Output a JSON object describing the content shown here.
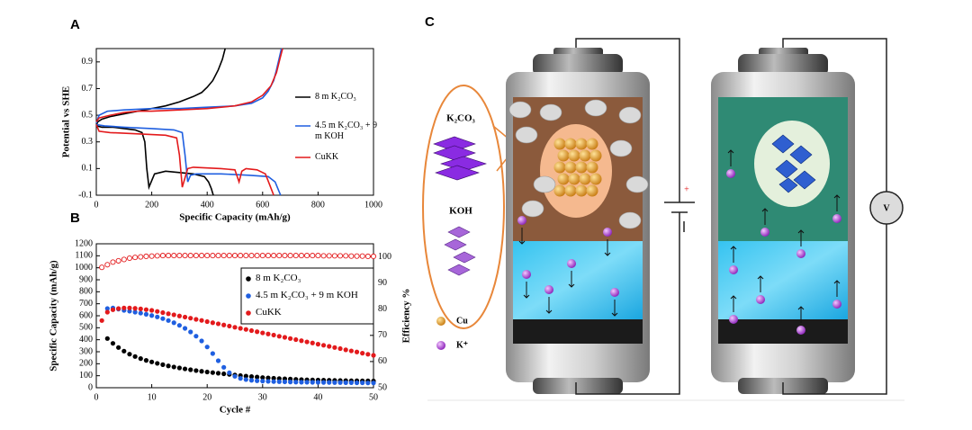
{
  "chart_data": [
    {
      "type": "line",
      "panel": "A",
      "xlabel": "Specific Capacity (mAh/g)",
      "ylabel": "Potential vs SHE",
      "xlim": [
        0,
        1000
      ],
      "xticks": [
        0,
        200,
        400,
        600,
        800,
        1000
      ],
      "ylim": [
        -0.1,
        1.0
      ],
      "yticks": [
        -0.1,
        0.1,
        0.3,
        0.5,
        0.7,
        0.9
      ],
      "series": [
        {
          "name": "8 m K₂CO₃",
          "color": "#000000",
          "x": [
            0,
            5,
            20,
            50,
            100,
            150,
            200,
            250,
            300,
            350,
            380,
            400,
            420,
            440,
            455,
            465,
            null,
            0,
            20,
            60,
            100,
            140,
            165,
            175,
            182,
            190,
            210,
            250,
            300,
            350,
            390,
            405,
            415,
            422
          ],
          "values": [
            0.42,
            0.45,
            0.47,
            0.49,
            0.51,
            0.53,
            0.55,
            0.57,
            0.6,
            0.64,
            0.67,
            0.71,
            0.76,
            0.84,
            0.92,
            1.0,
            null,
            0.42,
            0.41,
            0.41,
            0.4,
            0.39,
            0.37,
            0.3,
            0.1,
            -0.04,
            0.06,
            0.08,
            0.07,
            0.06,
            0.04,
            0.0,
            -0.05,
            -0.1
          ]
        },
        {
          "name": "4.5 m K₂CO₃ + 9 m KOH",
          "color": "#1f5fe0",
          "x": [
            0,
            10,
            40,
            100,
            200,
            300,
            400,
            500,
            560,
            600,
            620,
            640,
            650,
            660,
            668,
            null,
            0,
            30,
            100,
            200,
            280,
            310,
            320,
            330,
            340,
            360,
            450,
            550,
            620,
            645,
            655,
            665
          ],
          "values": [
            0.44,
            0.5,
            0.53,
            0.54,
            0.55,
            0.55,
            0.56,
            0.57,
            0.59,
            0.63,
            0.68,
            0.76,
            0.84,
            0.93,
            1.0,
            null,
            0.43,
            0.42,
            0.41,
            0.4,
            0.39,
            0.37,
            0.2,
            0.0,
            0.05,
            0.06,
            0.06,
            0.05,
            0.04,
            0.0,
            -0.05,
            -0.1
          ]
        },
        {
          "name": "CuKK",
          "color": "#e31a1c",
          "x": [
            0,
            10,
            50,
            100,
            150,
            200,
            300,
            400,
            500,
            560,
            600,
            630,
            650,
            662,
            672,
            null,
            0,
            10,
            50,
            150,
            250,
            290,
            300,
            310,
            330,
            350,
            450,
            500,
            515,
            525,
            540,
            580,
            610,
            625,
            640
          ],
          "values": [
            0.45,
            0.48,
            0.5,
            0.52,
            0.53,
            0.53,
            0.54,
            0.55,
            0.57,
            0.6,
            0.65,
            0.72,
            0.82,
            0.92,
            1.0,
            null,
            0.43,
            0.38,
            0.37,
            0.36,
            0.35,
            0.33,
            0.2,
            -0.04,
            0.1,
            0.11,
            0.1,
            0.09,
            0.0,
            0.08,
            0.1,
            0.09,
            0.06,
            -0.02,
            -0.1
          ]
        }
      ]
    },
    {
      "type": "scatter",
      "panel": "B",
      "xlabel": "Cycle #",
      "ylabel": "Specific Capacity (mAh/g)",
      "y2label": "Efficiency %",
      "xlim": [
        0,
        50
      ],
      "xticks": [
        0,
        10,
        20,
        30,
        40,
        50
      ],
      "ylim": [
        0,
        1200
      ],
      "yticks": [
        0,
        100,
        200,
        300,
        400,
        500,
        600,
        700,
        800,
        900,
        1000,
        1100,
        1200
      ],
      "y2lim": [
        50,
        105
      ],
      "y2ticks": [
        50,
        60,
        70,
        80,
        90,
        100
      ],
      "x": [
        1,
        2,
        3,
        4,
        5,
        6,
        7,
        8,
        9,
        10,
        11,
        12,
        13,
        14,
        15,
        16,
        17,
        18,
        19,
        20,
        21,
        22,
        23,
        24,
        25,
        26,
        27,
        28,
        29,
        30,
        31,
        32,
        33,
        34,
        35,
        36,
        37,
        38,
        39,
        40,
        41,
        42,
        43,
        44,
        45,
        46,
        47,
        48,
        49,
        50
      ],
      "series": [
        {
          "name": "8 m K₂CO₃",
          "color": "#000000",
          "values": [
            null,
            410,
            370,
            335,
            305,
            280,
            260,
            243,
            228,
            215,
            203,
            192,
            182,
            173,
            165,
            157,
            150,
            143,
            137,
            131,
            126,
            121,
            116,
            111,
            106,
            101,
            97,
            93,
            89,
            85,
            82,
            79,
            76,
            74,
            72,
            70,
            68,
            66,
            65,
            64,
            63,
            62,
            61,
            60,
            59,
            58,
            58,
            57,
            57,
            56
          ]
        },
        {
          "name": "4.5 m K₂CO₃ + 9 m KOH",
          "color": "#1f5fe0",
          "values": [
            null,
            660,
            665,
            655,
            645,
            638,
            630,
            622,
            612,
            602,
            590,
            576,
            560,
            542,
            520,
            495,
            465,
            430,
            390,
            340,
            285,
            225,
            170,
            125,
            95,
            78,
            68,
            62,
            58,
            55,
            53,
            51,
            50,
            49,
            48,
            47,
            46,
            46,
            45,
            45,
            44,
            44,
            43,
            43,
            42,
            42,
            41,
            41,
            40,
            40
          ]
        },
        {
          "name": "CuKK",
          "color": "#e31a1c",
          "values": [
            560,
            630,
            650,
            660,
            665,
            665,
            662,
            657,
            651,
            645,
            636,
            626,
            617,
            608,
            598,
            589,
            580,
            570,
            561,
            551,
            542,
            533,
            523,
            514,
            504,
            495,
            486,
            476,
            467,
            457,
            448,
            439,
            429,
            420,
            410,
            401,
            392,
            382,
            373,
            363,
            354,
            345,
            335,
            326,
            316,
            307,
            298,
            288,
            279,
            270
          ]
        },
        {
          "color": "#e31a1c",
          "axis": "y2",
          "marker": "open",
          "values": [
            96,
            97,
            98,
            98.5,
            99,
            99.5,
            99.8,
            100,
            100.2,
            100.3,
            100.4,
            100.5,
            100.5,
            100.5,
            100.5,
            100.5,
            100.5,
            100.5,
            100.5,
            100.5,
            100.5,
            100.5,
            100.5,
            100.5,
            100.5,
            100.5,
            100.5,
            100.5,
            100.5,
            100.5,
            100.5,
            100.5,
            100.5,
            100.5,
            100.5,
            100.5,
            100.5,
            100.5,
            100.5,
            100.5,
            100.4,
            100.4,
            100.4,
            100.4,
            100.4,
            100.3,
            100.3,
            100.3,
            100.2,
            100.2
          ]
        }
      ]
    }
  ],
  "diagram": {
    "panel": "C",
    "k2co3": "K₂CO₃",
    "koh": "KOH",
    "cu": "Cu",
    "k_ion": "K⁺",
    "plus": "+",
    "voltmeter": "V"
  }
}
